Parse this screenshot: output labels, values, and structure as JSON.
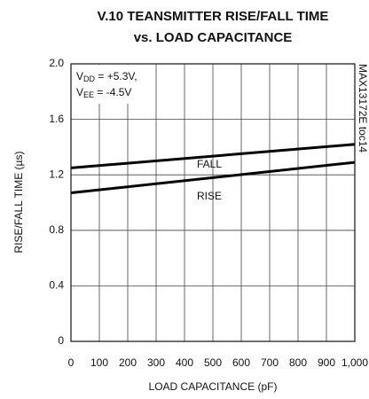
{
  "chart_data": {
    "type": "line",
    "title": [
      "V.10 TEANSMITTER RISE/FALL TIME",
      "vs. LOAD CAPACITANCE"
    ],
    "x_label": "LOAD CAPACITANCE (pF)",
    "y_label": "RISE/FALL TIME (µs)",
    "side_note": "MAX13172E toc14",
    "conditions": [
      [
        "V",
        "DD",
        " = +5.3V,"
      ],
      [
        "V",
        "EE",
        " = -4.5V"
      ]
    ],
    "x": [
      0,
      1000
    ],
    "series": [
      {
        "name": "FALL",
        "color": "#000000",
        "values": [
          1.25,
          1.42
        ]
      },
      {
        "name": "RISE",
        "color": "#000000",
        "values": [
          1.07,
          1.29
        ]
      }
    ],
    "xlim": [
      0,
      1000
    ],
    "xticks": [
      0,
      100,
      200,
      300,
      400,
      500,
      600,
      700,
      800,
      900,
      {
        "value": 1000,
        "label": "1,000"
      }
    ],
    "ylim": [
      0,
      2.0
    ],
    "yticks": [
      0,
      0.4,
      0.8,
      1.2,
      1.6,
      {
        "value": 2.0,
        "label": "2.0"
      }
    ],
    "grid": true
  }
}
